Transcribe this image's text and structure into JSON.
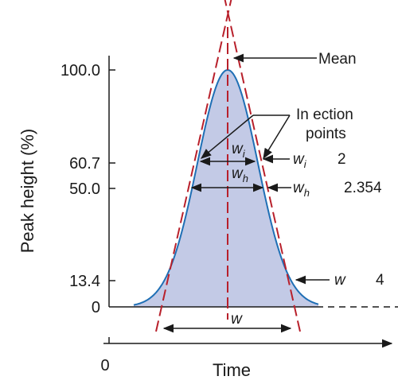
{
  "figure": {
    "y_axis_label": "Peak height (%)",
    "x_axis_label": "Time",
    "x_origin_label": "0",
    "y_ticks": [
      "100.0",
      "60.7",
      "50.0",
      "13.4",
      "0"
    ],
    "labels": {
      "mean": "Mean",
      "inflection_line1": "In  ection",
      "inflection_line2": "points",
      "wi": "w",
      "wi_sub": "i",
      "wh": "w",
      "wh_sub": "h",
      "w_base": "w",
      "wi_right": "w",
      "wi_right_sub": "i",
      "wi_right_value": "2",
      "wh_right": "w",
      "wh_right_sub": "h",
      "wh_right_value": "2.354",
      "w_right": "w",
      "w_right_value": "4"
    }
  },
  "colors": {
    "peak_fill": "#c3cae6",
    "peak_outline": "#1f6fb5",
    "dashed_lines": "#b8202b",
    "ink": "#1a1a1a"
  }
}
